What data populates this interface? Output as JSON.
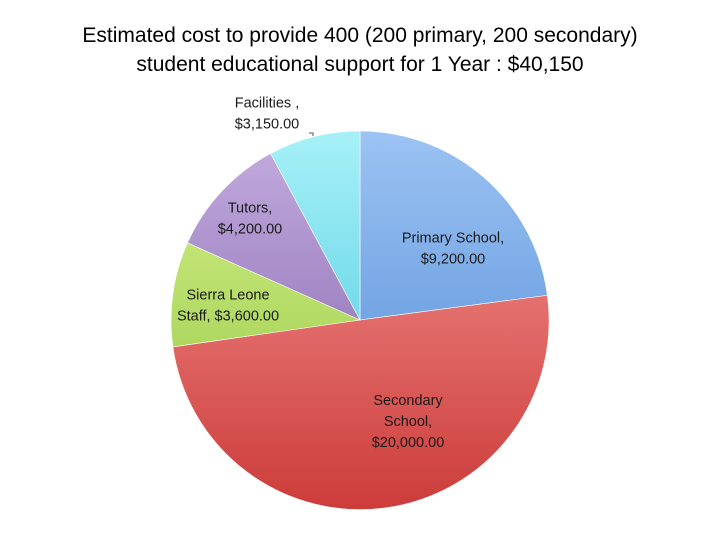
{
  "chart_data": {
    "type": "pie",
    "title_lines": [
      "Estimated cost to provide 400 (200 primary, 200 secondary)",
      "student educational support for 1 Year : $40,150"
    ],
    "slices": [
      {
        "category": "Primary School",
        "value": 9200,
        "label_lines": [
          "Primary School,",
          "$9,200.00"
        ],
        "color_top": "#9cc3f3",
        "color_bottom": "#4a86d4"
      },
      {
        "category": "Secondary School",
        "value": 20000,
        "label_lines": [
          "Secondary",
          "School,",
          "$20,000.00"
        ],
        "color_top": "#f79a98",
        "color_bottom": "#cc3c3a"
      },
      {
        "category": "Sierra Leone Staff",
        "value": 3600,
        "label_lines": [
          "Sierra Leone",
          "Staff, $3,600.00"
        ],
        "color_top": "#d8f08c",
        "color_bottom": "#8ec63f"
      },
      {
        "category": "Tutors",
        "value": 4200,
        "label_lines": [
          "Tutors,",
          "$4,200.00"
        ],
        "color_top": "#c4addf",
        "color_bottom": "#7b5aa6"
      },
      {
        "category": "Facilities",
        "value": 3150,
        "label_lines": [
          "Facilities ,",
          "$3,150.00"
        ],
        "color_top": "#a6f1f7",
        "color_bottom": "#3fc2dc"
      }
    ],
    "start_angle_deg": 0,
    "direction": "clockwise",
    "legend": "none"
  }
}
